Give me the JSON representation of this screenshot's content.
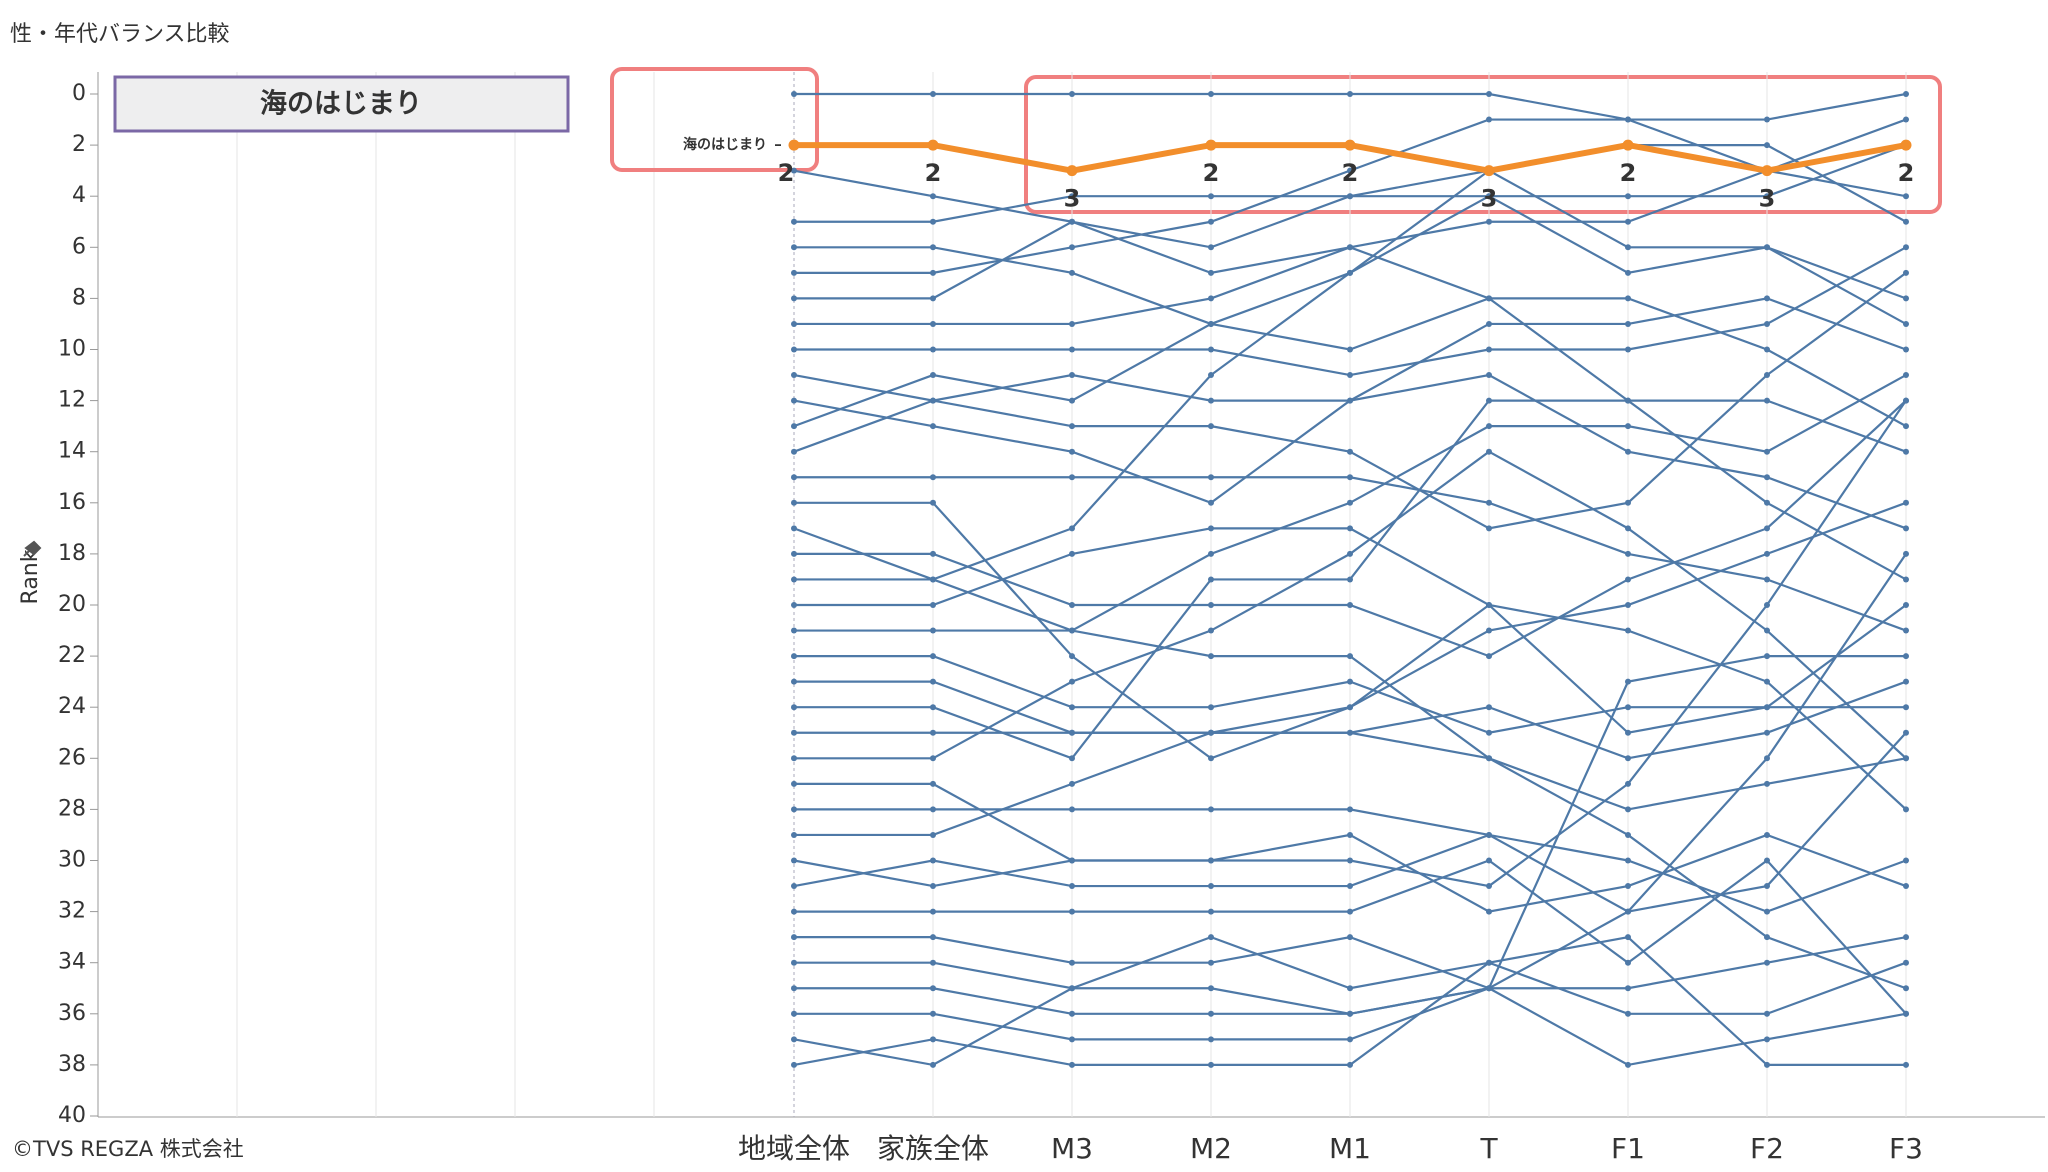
{
  "chart_data": {
    "type": "bump",
    "title": "性・年代バランス比較",
    "y_label": "Rank",
    "footnote": "©TVS REGZA 株式会社",
    "categories": [
      "地域全体",
      "家族全体",
      "M3",
      "M2",
      "M1",
      "T",
      "F1",
      "F2",
      "F3"
    ],
    "ylim": [
      0,
      40
    ],
    "yticks": [
      0,
      2,
      4,
      6,
      8,
      10,
      12,
      14,
      16,
      18,
      20,
      22,
      24,
      26,
      28,
      30,
      32,
      34,
      36,
      38,
      40
    ],
    "y_inverted": true,
    "highlight": {
      "name": "海のはじまり",
      "color": "#f28e2b",
      "values": [
        2,
        2,
        3,
        2,
        2,
        3,
        2,
        3,
        2
      ]
    },
    "series": [
      {
        "color": "#4e79a7",
        "values": [
          0,
          0,
          0,
          0,
          0,
          0,
          1,
          1,
          0
        ]
      },
      {
        "color": "#4e79a7",
        "values": [
          3,
          4,
          5,
          7,
          6,
          5,
          5,
          3,
          1
        ]
      },
      {
        "color": "#4e79a7",
        "values": [
          5,
          5,
          4,
          4,
          4,
          4,
          7,
          6,
          9
        ]
      },
      {
        "color": "#4e79a7",
        "values": [
          6,
          6,
          7,
          9,
          7,
          3,
          2,
          2,
          5
        ]
      },
      {
        "color": "#4e79a7",
        "values": [
          7,
          7,
          6,
          5,
          3,
          1,
          1,
          3,
          4
        ]
      },
      {
        "color": "#4e79a7",
        "values": [
          8,
          8,
          5,
          6,
          4,
          3,
          6,
          6,
          8
        ]
      },
      {
        "color": "#4e79a7",
        "values": [
          9,
          9,
          9,
          8,
          6,
          8,
          8,
          10,
          13
        ]
      },
      {
        "color": "#4e79a7",
        "values": [
          10,
          10,
          10,
          10,
          11,
          10,
          10,
          9,
          6
        ]
      },
      {
        "color": "#4e79a7",
        "values": [
          11,
          12,
          11,
          12,
          12,
          11,
          14,
          15,
          17
        ]
      },
      {
        "color": "#4e79a7",
        "values": [
          12,
          13,
          14,
          16,
          12,
          9,
          9,
          8,
          10
        ]
      },
      {
        "color": "#4e79a7",
        "values": [
          13,
          11,
          12,
          9,
          10,
          8,
          12,
          12,
          14
        ]
      },
      {
        "color": "#4e79a7",
        "values": [
          14,
          12,
          13,
          13,
          14,
          17,
          16,
          11,
          7
        ]
      },
      {
        "color": "#4e79a7",
        "values": [
          15,
          15,
          15,
          15,
          15,
          16,
          18,
          19,
          21
        ]
      },
      {
        "color": "#4e79a7",
        "values": [
          16,
          16,
          22,
          26,
          24,
          21,
          20,
          18,
          16
        ]
      },
      {
        "color": "#4e79a7",
        "values": [
          17,
          19,
          21,
          18,
          16,
          13,
          13,
          14,
          11
        ]
      },
      {
        "color": "#4e79a7",
        "values": [
          18,
          18,
          20,
          20,
          20,
          22,
          19,
          17,
          12
        ]
      },
      {
        "color": "#4e79a7",
        "values": [
          19,
          19,
          17,
          11,
          7,
          4,
          4,
          4,
          2
        ]
      },
      {
        "color": "#4e79a7",
        "values": [
          20,
          20,
          18,
          17,
          17,
          20,
          21,
          23,
          28
        ]
      },
      {
        "color": "#4e79a7",
        "values": [
          21,
          21,
          21,
          22,
          22,
          26,
          29,
          33,
          35
        ]
      },
      {
        "color": "#4e79a7",
        "values": [
          22,
          22,
          24,
          24,
          23,
          25,
          24,
          24,
          24
        ]
      },
      {
        "color": "#4e79a7",
        "values": [
          23,
          23,
          25,
          25,
          25,
          24,
          26,
          25,
          23
        ]
      },
      {
        "color": "#4e79a7",
        "values": [
          24,
          24,
          26,
          19,
          19,
          12,
          12,
          16,
          19
        ]
      },
      {
        "color": "#4e79a7",
        "values": [
          25,
          25,
          25,
          25,
          25,
          26,
          28,
          27,
          26
        ]
      },
      {
        "color": "#4e79a7",
        "values": [
          26,
          26,
          23,
          21,
          18,
          14,
          17,
          21,
          26
        ]
      },
      {
        "color": "#4e79a7",
        "values": [
          27,
          27,
          30,
          30,
          30,
          31,
          27,
          20,
          12
        ]
      },
      {
        "color": "#4e79a7",
        "values": [
          28,
          28,
          28,
          28,
          28,
          29,
          32,
          31,
          25
        ]
      },
      {
        "color": "#4e79a7",
        "values": [
          29,
          29,
          27,
          25,
          24,
          20,
          25,
          24,
          20
        ]
      },
      {
        "color": "#4e79a7",
        "values": [
          30,
          31,
          30,
          30,
          29,
          32,
          31,
          29,
          31
        ]
      },
      {
        "color": "#4e79a7",
        "values": [
          31,
          30,
          31,
          31,
          31,
          29,
          30,
          32,
          30
        ]
      },
      {
        "color": "#4e79a7",
        "values": [
          32,
          32,
          32,
          32,
          32,
          30,
          34,
          30,
          36
        ]
      },
      {
        "color": "#4e79a7",
        "values": [
          33,
          33,
          34,
          34,
          33,
          35,
          35,
          34,
          33
        ]
      },
      {
        "color": "#4e79a7",
        "values": [
          34,
          34,
          35,
          33,
          35,
          34,
          36,
          36,
          34
        ]
      },
      {
        "color": "#4e79a7",
        "values": [
          35,
          35,
          36,
          36,
          36,
          35,
          23,
          22,
          22
        ]
      },
      {
        "color": "#4e79a7",
        "values": [
          36,
          36,
          37,
          37,
          37,
          35,
          38,
          37,
          36
        ]
      },
      {
        "color": "#4e79a7",
        "values": [
          37,
          38,
          35,
          35,
          36,
          35,
          32,
          26,
          18
        ]
      },
      {
        "color": "#4e79a7",
        "values": [
          38,
          37,
          38,
          38,
          38,
          34,
          33,
          38,
          38
        ]
      }
    ]
  }
}
